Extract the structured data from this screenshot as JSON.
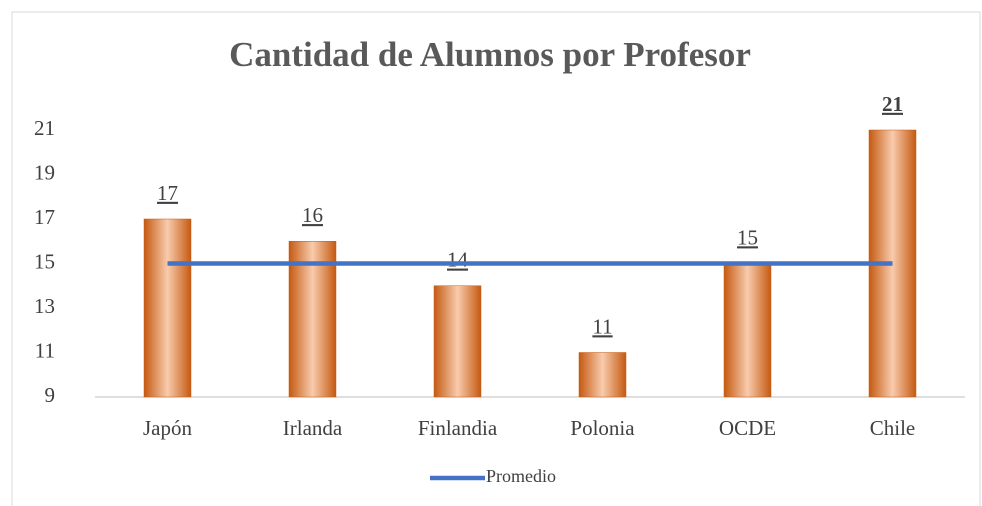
{
  "chart_data": {
    "type": "bar",
    "title": "Cantidad de Alumnos por Profesor",
    "categories": [
      "Japón",
      "Irlanda",
      "Finlandia",
      "Polonia",
      "OCDE",
      "Chile"
    ],
    "series": [
      {
        "type": "bar",
        "color": "#c55a11",
        "values": [
          17,
          16,
          14,
          11,
          15,
          21
        ],
        "label_bold": [
          false,
          false,
          false,
          false,
          false,
          true
        ]
      },
      {
        "type": "line",
        "name": "Promedio",
        "color": "#4472c4",
        "values": [
          15,
          15,
          15,
          15,
          15,
          15
        ]
      }
    ],
    "ylim": [
      9,
      21
    ],
    "yticks": [
      9,
      11,
      13,
      15,
      17,
      19,
      21
    ],
    "grid": false,
    "legend": "bottom"
  }
}
